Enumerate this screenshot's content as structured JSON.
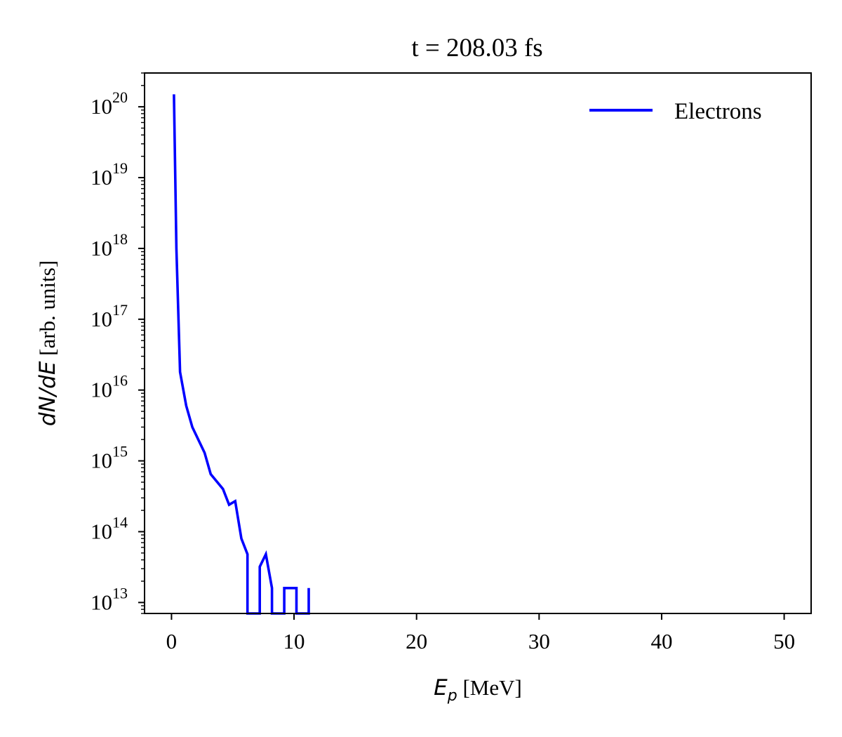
{
  "chart_data": {
    "type": "line",
    "title": "t = 208.03 fs",
    "xlabel": {
      "symbol": "E",
      "subscript": "p",
      "unit": " [MeV]"
    },
    "ylabel": {
      "symbol": "dN/dE",
      "unit": " [arb. units]"
    },
    "xlim": [
      -2.2,
      52.2
    ],
    "ylim": [
      7000000000000.0,
      3e+20
    ],
    "yscale": "log",
    "xticks": [
      0,
      10,
      20,
      30,
      40,
      50
    ],
    "xtick_labels": [
      "0",
      "10",
      "20",
      "30",
      "40",
      "50"
    ],
    "yticks": [
      13,
      14,
      15,
      16,
      17,
      18,
      19,
      20
    ],
    "ytick_labels": [
      "10",
      "10",
      "10",
      "10",
      "10",
      "10",
      "10",
      "10"
    ],
    "ytick_exponents": [
      "13",
      "14",
      "15",
      "16",
      "17",
      "18",
      "19",
      "20"
    ],
    "grid": false,
    "legend": {
      "position": "top-right"
    },
    "series": [
      {
        "name": "Electrons",
        "color": "#0000ff",
        "x": [
          0.2,
          0.4,
          0.7,
          1.2,
          1.7,
          2.7,
          3.2,
          4.2,
          4.7,
          5.2,
          5.7,
          6.2,
          6.2,
          7.2,
          7.2,
          7.7,
          8.2,
          8.2,
          9.2,
          9.2,
          10.2,
          10.2,
          11.2,
          11.2
        ],
        "y": [
          1.5e+20,
          1e+18,
          1.8e+16,
          6000000000000000.0,
          3000000000000000.0,
          1300000000000000.0,
          650000000000000.0,
          400000000000000.0,
          240000000000000.0,
          270000000000000.0,
          80000000000000.0,
          48000000000000.0,
          7000000000000.0,
          7000000000000.0,
          32000000000000.0,
          48000000000000.0,
          16000000000000.0,
          7000000000000.0,
          7000000000000.0,
          16000000000000.0,
          16000000000000.0,
          7000000000000.0,
          7000000000000.0,
          16000000000000.0
        ]
      }
    ]
  }
}
